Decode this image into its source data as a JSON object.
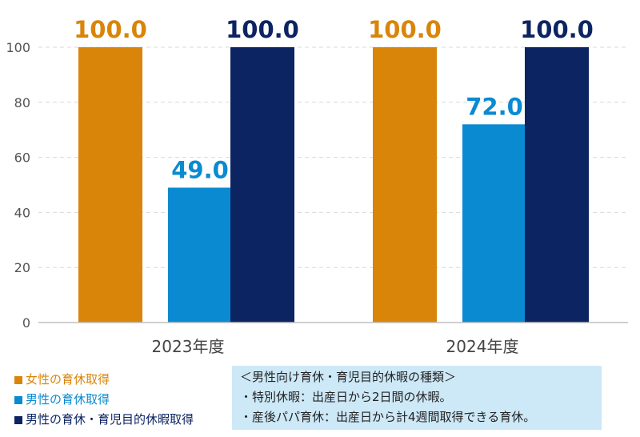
{
  "chart_data": {
    "type": "bar",
    "categories": [
      "2023年度",
      "2024年度"
    ],
    "series": [
      {
        "name": "女性の育休取得",
        "color": "#d9850a",
        "values": [
          100.0,
          100.0
        ]
      },
      {
        "name": "男性の育休取得",
        "color": "#0a8ad1",
        "values": [
          49.0,
          72.0
        ]
      },
      {
        "name": "男性の育休・育児目的休暇取得",
        "color": "#0c2461",
        "values": [
          100.0,
          100.0
        ]
      }
    ],
    "ylim": [
      0,
      100
    ],
    "yticks": [
      0,
      20,
      40,
      60,
      80,
      100
    ],
    "grid": true,
    "value_labels": [
      "100.0",
      "49.0",
      "100.0",
      "100.0",
      "72.0",
      "100.0"
    ]
  },
  "notes": {
    "title": "＜男性向け育休・育児目的休暇の種類＞",
    "line1": "・特別休暇：出産日から2日間の休暇。",
    "line2": "・産後パパ育休：出産日から計4週間取得できる育休。"
  }
}
